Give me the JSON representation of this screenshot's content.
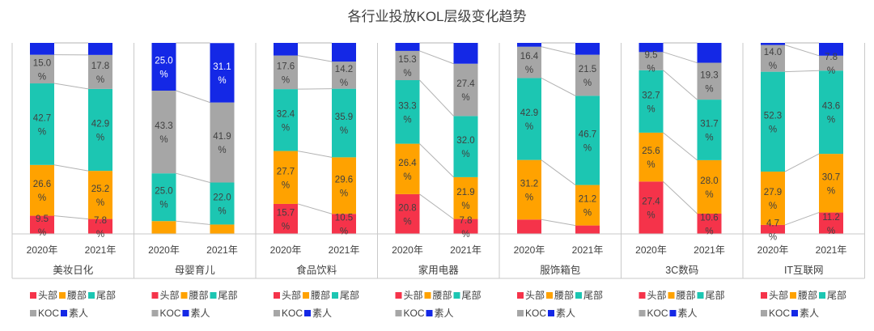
{
  "title": "各行业投放KOL层级变化趋势",
  "colors": {
    "头部": "#f5334a",
    "腰部": "#ffa200",
    "尾部": "#1cc6b2",
    "KOC": "#a6a6a6",
    "素人": "#1428e6"
  },
  "chart_data": {
    "type": "bar",
    "stacked": true,
    "unit": "%",
    "ylim": [
      0,
      100
    ],
    "segments_order_bottom_to_top": [
      "头部",
      "腰部",
      "尾部",
      "KOC",
      "素人"
    ],
    "categories": [
      "2020年",
      "2021年"
    ],
    "panels": [
      {
        "industry": "美妆日化",
        "years": [
          {
            "year": "2020年",
            "values": {
              "头部": 9.5,
              "腰部": 26.6,
              "尾部": 42.7,
              "KOC": 15.0,
              "素人": 6.2
            },
            "labels": {
              "头部": "9.5%",
              "腰部": "26.6%",
              "尾部": "42.7%",
              "KOC": "15.0%"
            }
          },
          {
            "year": "2021年",
            "values": {
              "头部": 7.8,
              "腰部": 25.2,
              "尾部": 42.9,
              "KOC": 17.8,
              "素人": 6.3
            },
            "labels": {
              "头部": "7.8%",
              "腰部": "25.2%",
              "尾部": "42.9%",
              "KOC": "17.8%"
            }
          }
        ]
      },
      {
        "industry": "母婴育儿",
        "years": [
          {
            "year": "2020年",
            "values": {
              "头部": 0,
              "腰部": 6.7,
              "尾部": 25.0,
              "KOC": 43.3,
              "素人": 25.0
            },
            "labels": {
              "尾部": "25.0%",
              "KOC": "43.3%",
              "素人": "25.0%"
            }
          },
          {
            "year": "2021年",
            "values": {
              "头部": 0,
              "腰部": 4.9,
              "尾部": 22.0,
              "KOC": 41.9,
              "素人": 31.1
            },
            "labels": {
              "尾部": "22.0%",
              "KOC": "41.9%",
              "素人": "31.1%"
            }
          }
        ]
      },
      {
        "industry": "食品饮料",
        "years": [
          {
            "year": "2020年",
            "values": {
              "头部": 15.7,
              "腰部": 27.7,
              "尾部": 32.4,
              "KOC": 17.6,
              "素人": 6.6
            },
            "labels": {
              "头部": "15.7%",
              "腰部": "27.7%",
              "尾部": "32.4%",
              "KOC": "17.6%"
            }
          },
          {
            "year": "2021年",
            "values": {
              "头部": 10.5,
              "腰部": 29.6,
              "尾部": 35.9,
              "KOC": 14.2,
              "素人": 9.8
            },
            "labels": {
              "头部": "10.5%",
              "腰部": "29.6%",
              "尾部": "35.9%",
              "KOC": "14.2%"
            }
          }
        ]
      },
      {
        "industry": "家用电器",
        "years": [
          {
            "year": "2020年",
            "values": {
              "头部": 20.8,
              "腰部": 26.4,
              "尾部": 33.3,
              "KOC": 15.3,
              "素人": 4.2
            },
            "labels": {
              "头部": "20.8%",
              "腰部": "26.4%",
              "尾部": "33.3%",
              "KOC": "15.3%"
            }
          },
          {
            "year": "2021年",
            "values": {
              "头部": 7.8,
              "腰部": 21.9,
              "尾部": 32.0,
              "KOC": 27.4,
              "素人": 10.9
            },
            "labels": {
              "头部": "7.8%",
              "腰部": "21.9%",
              "尾部": "32.0%",
              "KOC": "27.4%"
            }
          }
        ]
      },
      {
        "industry": "服饰箱包",
        "years": [
          {
            "year": "2020年",
            "values": {
              "头部": 7.5,
              "腰部": 31.2,
              "尾部": 42.9,
              "KOC": 16.4,
              "素人": 2.0
            },
            "labels": {
              "腰部": "31.2%",
              "尾部": "42.9%",
              "KOC": "16.4%"
            }
          },
          {
            "year": "2021年",
            "values": {
              "头部": 4.4,
              "腰部": 21.2,
              "尾部": 46.7,
              "KOC": 21.5,
              "素人": 6.2
            },
            "labels": {
              "腰部": "21.2%",
              "尾部": "46.7%",
              "KOC": "21.5%"
            }
          }
        ]
      },
      {
        "industry": "3C数码",
        "years": [
          {
            "year": "2020年",
            "values": {
              "头部": 27.4,
              "腰部": 25.6,
              "尾部": 32.7,
              "KOC": 9.5,
              "素人": 4.8
            },
            "labels": {
              "头部": "27.4%",
              "腰部": "25.6%",
              "尾部": "32.7%",
              "KOC": "9.5%"
            }
          },
          {
            "year": "2021年",
            "values": {
              "头部": 10.6,
              "腰部": 28.0,
              "尾部": 31.7,
              "KOC": 19.3,
              "素人": 10.4
            },
            "labels": {
              "头部": "10.6%",
              "腰部": "28.0%",
              "尾部": "31.7%",
              "KOC": "19.3%"
            }
          }
        ]
      },
      {
        "industry": "IT互联网",
        "years": [
          {
            "year": "2020年",
            "values": {
              "头部": 4.7,
              "腰部": 27.9,
              "尾部": 52.3,
              "KOC": 14.0,
              "素人": 1.1
            },
            "labels": {
              "头部": "4.7%",
              "腰部": "27.9%",
              "尾部": "52.3%",
              "KOC": "14.0%"
            }
          },
          {
            "year": "2021年",
            "values": {
              "头部": 11.2,
              "腰部": 30.7,
              "尾部": 43.6,
              "KOC": 7.8,
              "素人": 6.7
            },
            "labels": {
              "头部": "11.2%",
              "腰部": "30.7%",
              "尾部": "43.6%",
              "KOC": "7.8%"
            }
          }
        ]
      }
    ]
  },
  "legend": {
    "row1": [
      "头部",
      "腰部",
      "尾部"
    ],
    "row2": [
      "KOC",
      "素人"
    ]
  }
}
